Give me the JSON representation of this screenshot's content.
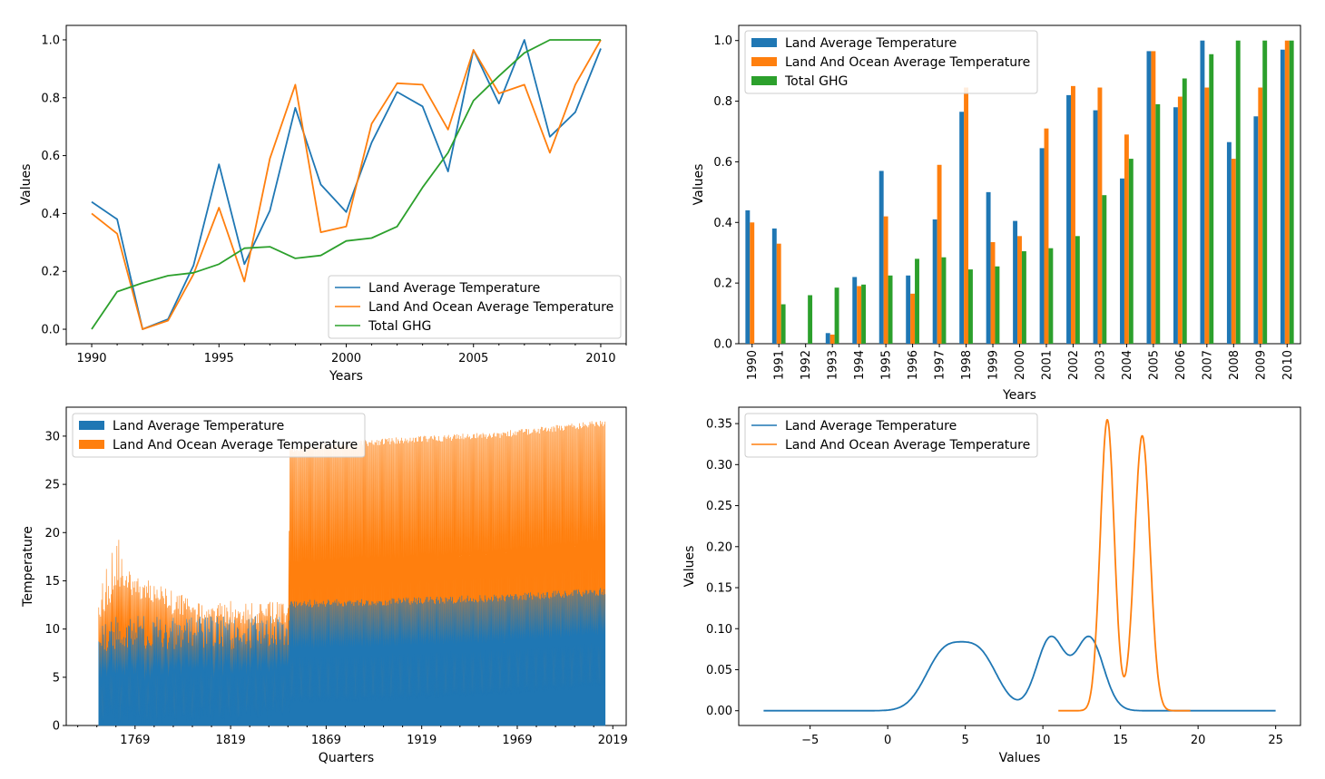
{
  "colors": {
    "blue": "#1f77b4",
    "orange": "#ff7f0e",
    "green": "#2ca02c"
  },
  "chart_data": [
    {
      "type": "line",
      "xlabel": "Years",
      "ylabel": "Values",
      "x": [
        1990,
        1991,
        1992,
        1993,
        1994,
        1995,
        1996,
        1997,
        1998,
        1999,
        2000,
        2001,
        2002,
        2003,
        2004,
        2005,
        2006,
        2007,
        2008,
        2009,
        2010
      ],
      "xlim": [
        1989,
        2011
      ],
      "ylim": [
        -0.05,
        1.05
      ],
      "xticks": [
        1990,
        1995,
        2000,
        2005,
        2010
      ],
      "yticks": [
        0.0,
        0.2,
        0.4,
        0.6,
        0.8,
        1.0
      ],
      "ytick_labels": [
        "0.0",
        "0.2",
        "0.4",
        "0.6",
        "0.8",
        "1.0"
      ],
      "legend_position": "lower-right",
      "series": [
        {
          "name": "Land Average Temperature",
          "color": "#1f77b4",
          "values": [
            0.44,
            0.38,
            0.0,
            0.035,
            0.22,
            0.57,
            0.225,
            0.41,
            0.765,
            0.5,
            0.405,
            0.645,
            0.82,
            0.77,
            0.545,
            0.965,
            0.78,
            1.0,
            0.665,
            0.75,
            0.97
          ]
        },
        {
          "name": "Land And Ocean Average Temperature",
          "color": "#ff7f0e",
          "values": [
            0.4,
            0.33,
            0.0,
            0.03,
            0.19,
            0.42,
            0.165,
            0.59,
            0.845,
            0.335,
            0.355,
            0.71,
            0.85,
            0.845,
            0.69,
            0.965,
            0.815,
            0.845,
            0.61,
            0.845,
            1.0
          ]
        },
        {
          "name": "Total GHG",
          "color": "#2ca02c",
          "values": [
            0.0,
            0.13,
            0.16,
            0.185,
            0.195,
            0.225,
            0.28,
            0.285,
            0.245,
            0.255,
            0.305,
            0.315,
            0.355,
            0.49,
            0.61,
            0.79,
            0.875,
            0.955,
            1.0,
            1.0,
            1.0
          ]
        }
      ]
    },
    {
      "type": "bar",
      "xlabel": "Years",
      "ylabel": "Values",
      "categories": [
        "1990",
        "1991",
        "1992",
        "1993",
        "1994",
        "1995",
        "1996",
        "1997",
        "1998",
        "1999",
        "2000",
        "2001",
        "2002",
        "2003",
        "2004",
        "2005",
        "2006",
        "2007",
        "2008",
        "2009",
        "2010"
      ],
      "ylim": [
        0,
        1.05
      ],
      "yticks": [
        0.0,
        0.2,
        0.4,
        0.6,
        0.8,
        1.0
      ],
      "ytick_labels": [
        "0.0",
        "0.2",
        "0.4",
        "0.6",
        "0.8",
        "1.0"
      ],
      "legend_position": "top-left",
      "series": [
        {
          "name": "Land Average Temperature",
          "color": "#1f77b4",
          "values": [
            0.44,
            0.38,
            0.0,
            0.035,
            0.22,
            0.57,
            0.225,
            0.41,
            0.765,
            0.5,
            0.405,
            0.645,
            0.82,
            0.77,
            0.545,
            0.965,
            0.78,
            1.0,
            0.665,
            0.75,
            0.97
          ]
        },
        {
          "name": "Land And Ocean Average Temperature",
          "color": "#ff7f0e",
          "values": [
            0.4,
            0.33,
            0.0,
            0.03,
            0.19,
            0.42,
            0.165,
            0.59,
            0.845,
            0.335,
            0.355,
            0.71,
            0.85,
            0.845,
            0.69,
            0.965,
            0.815,
            0.845,
            0.61,
            0.845,
            1.0
          ]
        },
        {
          "name": "Total GHG",
          "color": "#2ca02c",
          "values": [
            0.0,
            0.13,
            0.16,
            0.185,
            0.195,
            0.225,
            0.28,
            0.285,
            0.245,
            0.255,
            0.305,
            0.315,
            0.355,
            0.49,
            0.61,
            0.79,
            0.875,
            0.955,
            1.0,
            1.0,
            1.0
          ]
        }
      ]
    },
    {
      "type": "area",
      "xlabel": "Quarters",
      "ylabel": "Temperature",
      "xlim": [
        1733,
        2026
      ],
      "ylim": [
        0,
        33
      ],
      "xticks": [
        1769,
        1819,
        1869,
        1919,
        1969,
        2019
      ],
      "yticks": [
        0,
        5,
        10,
        15,
        20,
        25,
        30
      ],
      "legend_position": "top-left",
      "x_start": 1750,
      "x_end": 2015,
      "regime_change_x": 1850,
      "series": [
        {
          "name": "Land Average Temperature",
          "color": "#1f77b4",
          "upper_envelope": {
            "1750": 11.0,
            "1765": 11.5,
            "1800": 11.3,
            "1849": 11.5,
            "1850": 13.0,
            "1900": 13.2,
            "1960": 13.6,
            "2015": 14.3
          },
          "lower_envelope": {
            "1750": 2.0,
            "1800": 2.3,
            "1849": 2.7,
            "1850": 2.8,
            "1900": 3.0,
            "1960": 3.6,
            "2015": 4.5
          }
        },
        {
          "name": "Land And Ocean Average Temperature",
          "color": "#ff7f0e",
          "upper_envelope": {
            "1750": 13.0,
            "1760": 16.5,
            "1800": 13.0,
            "1849": 12.8,
            "1850": 29.0,
            "1900": 29.8,
            "1960": 30.5,
            "2015": 31.7
          },
          "lower_envelope": {
            "1750": 2.5,
            "1800": 2.7,
            "1849": 3.5
          }
        }
      ]
    },
    {
      "type": "line",
      "subtype": "density",
      "xlabel": "Values",
      "ylabel": "Values",
      "xlim": [
        -9.6,
        26.6
      ],
      "ylim": [
        -0.018,
        0.37
      ],
      "xticks": [
        -5,
        0,
        5,
        10,
        15,
        20,
        25
      ],
      "yticks": [
        0.0,
        0.05,
        0.1,
        0.15,
        0.2,
        0.25,
        0.3,
        0.35
      ],
      "ytick_labels": [
        "0.00",
        "0.05",
        "0.10",
        "0.15",
        "0.20",
        "0.25",
        "0.30",
        "0.35"
      ],
      "legend_position": "top-left",
      "series": [
        {
          "name": "Land Average Temperature",
          "color": "#1f77b4",
          "x_range": [
            -8,
            25
          ],
          "components": [
            {
              "mean": 3.6,
              "sd": 1.2,
              "weight": 0.2
            },
            {
              "mean": 5.9,
              "sd": 1.2,
              "weight": 0.2
            },
            {
              "mean": 10.5,
              "sd": 0.9,
              "weight": 0.2
            },
            {
              "mean": 13.0,
              "sd": 0.9,
              "weight": 0.2
            }
          ]
        },
        {
          "name": "Land And Ocean Average Temperature",
          "color": "#ff7f0e",
          "x_range": [
            11,
            19.5
          ],
          "components": [
            {
              "mean": 14.15,
              "sd": 0.45,
              "weight": 0.4
            },
            {
              "mean": 16.4,
              "sd": 0.5,
              "weight": 0.42
            }
          ]
        }
      ]
    }
  ]
}
